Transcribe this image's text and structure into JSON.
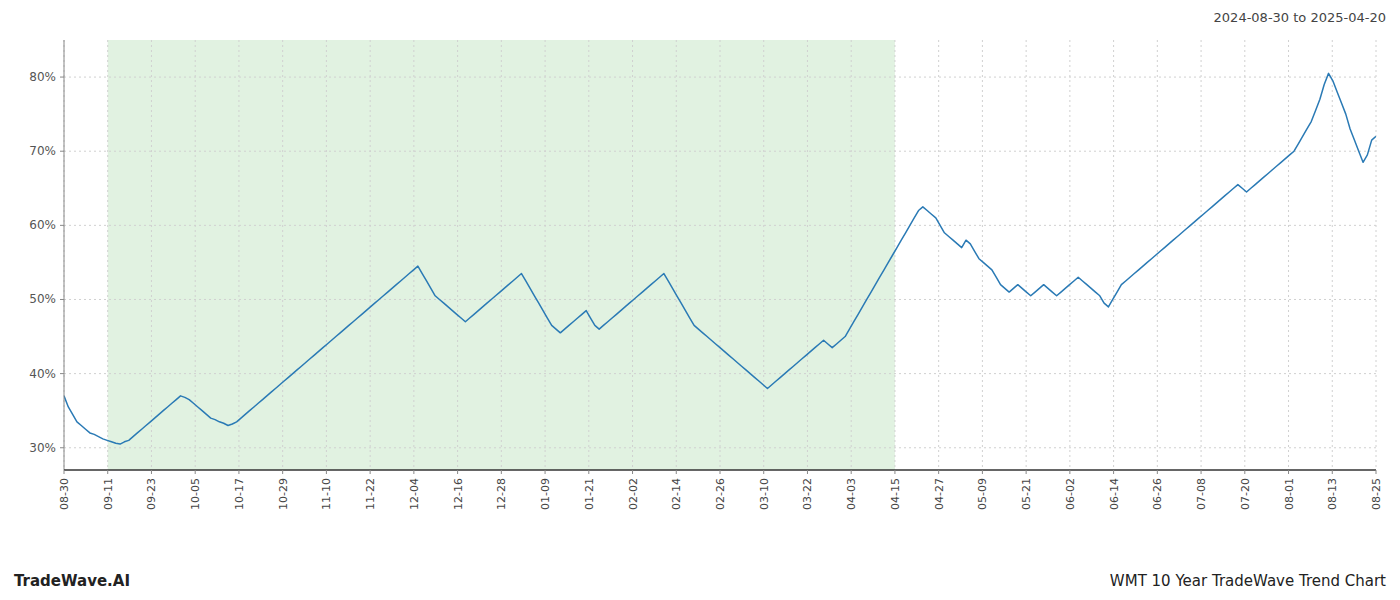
{
  "chart_data": {
    "type": "line",
    "title": "WMT 10 Year TradeWave Trend Chart",
    "subtitle": "2024-08-30 to 2025-04-20",
    "annotations": [
      "TradeWave.AI"
    ],
    "color": "#2a7ab5",
    "grid": true,
    "highlight": {
      "from": "09-11",
      "to": "04-15",
      "color": "#d4ecd4"
    },
    "xlim": [
      0,
      304
    ],
    "xticks": [
      {
        "value": 0,
        "label": "08-30"
      },
      {
        "value": 10.133333333333333,
        "label": "09-11"
      },
      {
        "value": 20.266666666666666,
        "label": "09-23"
      },
      {
        "value": 30.4,
        "label": "10-05"
      },
      {
        "value": 40.53333333333333,
        "label": "10-17"
      },
      {
        "value": 50.666666666666664,
        "label": "10-29"
      },
      {
        "value": 60.8,
        "label": "11-10"
      },
      {
        "value": 70.93333333333334,
        "label": "11-22"
      },
      {
        "value": 81.06666666666666,
        "label": "12-04"
      },
      {
        "value": 91.2,
        "label": "12-16"
      },
      {
        "value": 101.33333333333333,
        "label": "12-28"
      },
      {
        "value": 111.46666666666667,
        "label": "01-09"
      },
      {
        "value": 121.6,
        "label": "01-21"
      },
      {
        "value": 131.73333333333332,
        "label": "02-02"
      },
      {
        "value": 141.86666666666667,
        "label": "02-14"
      },
      {
        "value": 152,
        "label": "02-26"
      },
      {
        "value": 162.13333333333333,
        "label": "03-10"
      },
      {
        "value": 172.26666666666668,
        "label": "03-22"
      },
      {
        "value": 182.4,
        "label": "04-03"
      },
      {
        "value": 192.53333333333333,
        "label": "04-15"
      },
      {
        "value": 202.66666666666666,
        "label": "04-27"
      },
      {
        "value": 212.8,
        "label": "05-09"
      },
      {
        "value": 222.93333333333334,
        "label": "05-21"
      },
      {
        "value": 233.06666666666666,
        "label": "06-02"
      },
      {
        "value": 243.2,
        "label": "06-14"
      },
      {
        "value": 253.33333333333334,
        "label": "06-26"
      },
      {
        "value": 263.46666666666664,
        "label": "07-08"
      },
      {
        "value": 273.6,
        "label": "07-20"
      },
      {
        "value": 283.73333333333335,
        "label": "08-01"
      },
      {
        "value": 293.8666666666667,
        "label": "08-13"
      },
      {
        "value": 304,
        "label": "08-25"
      }
    ],
    "ylim": [
      27,
      85
    ],
    "yticks": [
      {
        "value": 30,
        "label": "30%"
      },
      {
        "value": 40,
        "label": "40%"
      },
      {
        "value": 50,
        "label": "50%"
      },
      {
        "value": 60,
        "label": "60%"
      },
      {
        "value": 70,
        "label": "70%"
      },
      {
        "value": 80,
        "label": "80%"
      }
    ],
    "values": [
      37.0,
      35.5,
      34.5,
      33.5,
      33.0,
      32.5,
      32.0,
      31.8,
      31.5,
      31.2,
      31.0,
      30.8,
      30.6,
      30.5,
      30.8,
      31.0,
      31.5,
      32.0,
      32.5,
      33.0,
      33.5,
      34.0,
      34.5,
      35.0,
      35.5,
      36.0,
      36.5,
      37.0,
      36.8,
      36.5,
      36.0,
      35.5,
      35.0,
      34.5,
      34.0,
      33.8,
      33.5,
      33.3,
      33.0,
      33.2,
      33.5,
      34.0,
      34.5,
      35.0,
      35.5,
      36.0,
      36.5,
      37.0,
      37.5,
      38.0,
      38.5,
      39.0,
      39.5,
      40.0,
      40.5,
      41.0,
      41.5,
      42.0,
      42.5,
      43.0,
      43.5,
      44.0,
      44.5,
      45.0,
      45.5,
      46.0,
      46.5,
      47.0,
      47.5,
      48.0,
      48.5,
      49.0,
      49.5,
      50.0,
      50.5,
      51.0,
      51.5,
      52.0,
      52.5,
      53.0,
      53.5,
      54.0,
      54.5,
      53.5,
      52.5,
      51.5,
      50.5,
      50.0,
      49.5,
      49.0,
      48.5,
      48.0,
      47.5,
      47.0,
      47.5,
      48.0,
      48.5,
      49.0,
      49.5,
      50.0,
      50.5,
      51.0,
      51.5,
      52.0,
      52.5,
      53.0,
      53.5,
      52.5,
      51.5,
      50.5,
      49.5,
      48.5,
      47.5,
      46.5,
      46.0,
      45.5,
      46.0,
      46.5,
      47.0,
      47.5,
      48.0,
      48.5,
      47.5,
      46.5,
      46.0,
      46.5,
      47.0,
      47.5,
      48.0,
      48.5,
      49.0,
      49.5,
      50.0,
      50.5,
      51.0,
      51.5,
      52.0,
      52.5,
      53.0,
      53.5,
      52.5,
      51.5,
      50.5,
      49.5,
      48.5,
      47.5,
      46.5,
      46.0,
      45.5,
      45.0,
      44.5,
      44.0,
      43.5,
      43.0,
      42.5,
      42.0,
      41.5,
      41.0,
      40.5,
      40.0,
      39.5,
      39.0,
      38.5,
      38.0,
      38.5,
      39.0,
      39.5,
      40.0,
      40.5,
      41.0,
      41.5,
      42.0,
      42.5,
      43.0,
      43.5,
      44.0,
      44.5,
      44.0,
      43.5,
      44.0,
      44.5,
      45.0,
      46.0,
      47.0,
      48.0,
      49.0,
      50.0,
      51.0,
      52.0,
      53.0,
      54.0,
      55.0,
      56.0,
      57.0,
      58.0,
      59.0,
      60.0,
      61.0,
      62.0,
      62.5,
      62.0,
      61.5,
      61.0,
      60.0,
      59.0,
      58.5,
      58.0,
      57.5,
      57.0,
      58.0,
      57.5,
      56.5,
      55.5,
      55.0,
      54.5,
      54.0,
      53.0,
      52.0,
      51.5,
      51.0,
      51.5,
      52.0,
      51.5,
      51.0,
      50.5,
      51.0,
      51.5,
      52.0,
      51.5,
      51.0,
      50.5,
      51.0,
      51.5,
      52.0,
      52.5,
      53.0,
      52.5,
      52.0,
      51.5,
      51.0,
      50.5,
      49.5,
      49.0,
      50.0,
      51.0,
      52.0,
      52.5,
      53.0,
      53.5,
      54.0,
      54.5,
      55.0,
      55.5,
      56.0,
      56.5,
      57.0,
      57.5,
      58.0,
      58.5,
      59.0,
      59.5,
      60.0,
      60.5,
      61.0,
      61.5,
      62.0,
      62.5,
      63.0,
      63.5,
      64.0,
      64.5,
      65.0,
      65.5,
      65.0,
      64.5,
      65.0,
      65.5,
      66.0,
      66.5,
      67.0,
      67.5,
      68.0,
      68.5,
      69.0,
      69.5,
      70.0,
      71.0,
      72.0,
      73.0,
      74.0,
      75.5,
      77.0,
      79.0,
      80.5,
      79.5,
      78.0,
      76.5,
      75.0,
      73.0,
      71.5,
      70.0,
      68.5,
      69.5,
      71.5,
      72.0
    ]
  }
}
